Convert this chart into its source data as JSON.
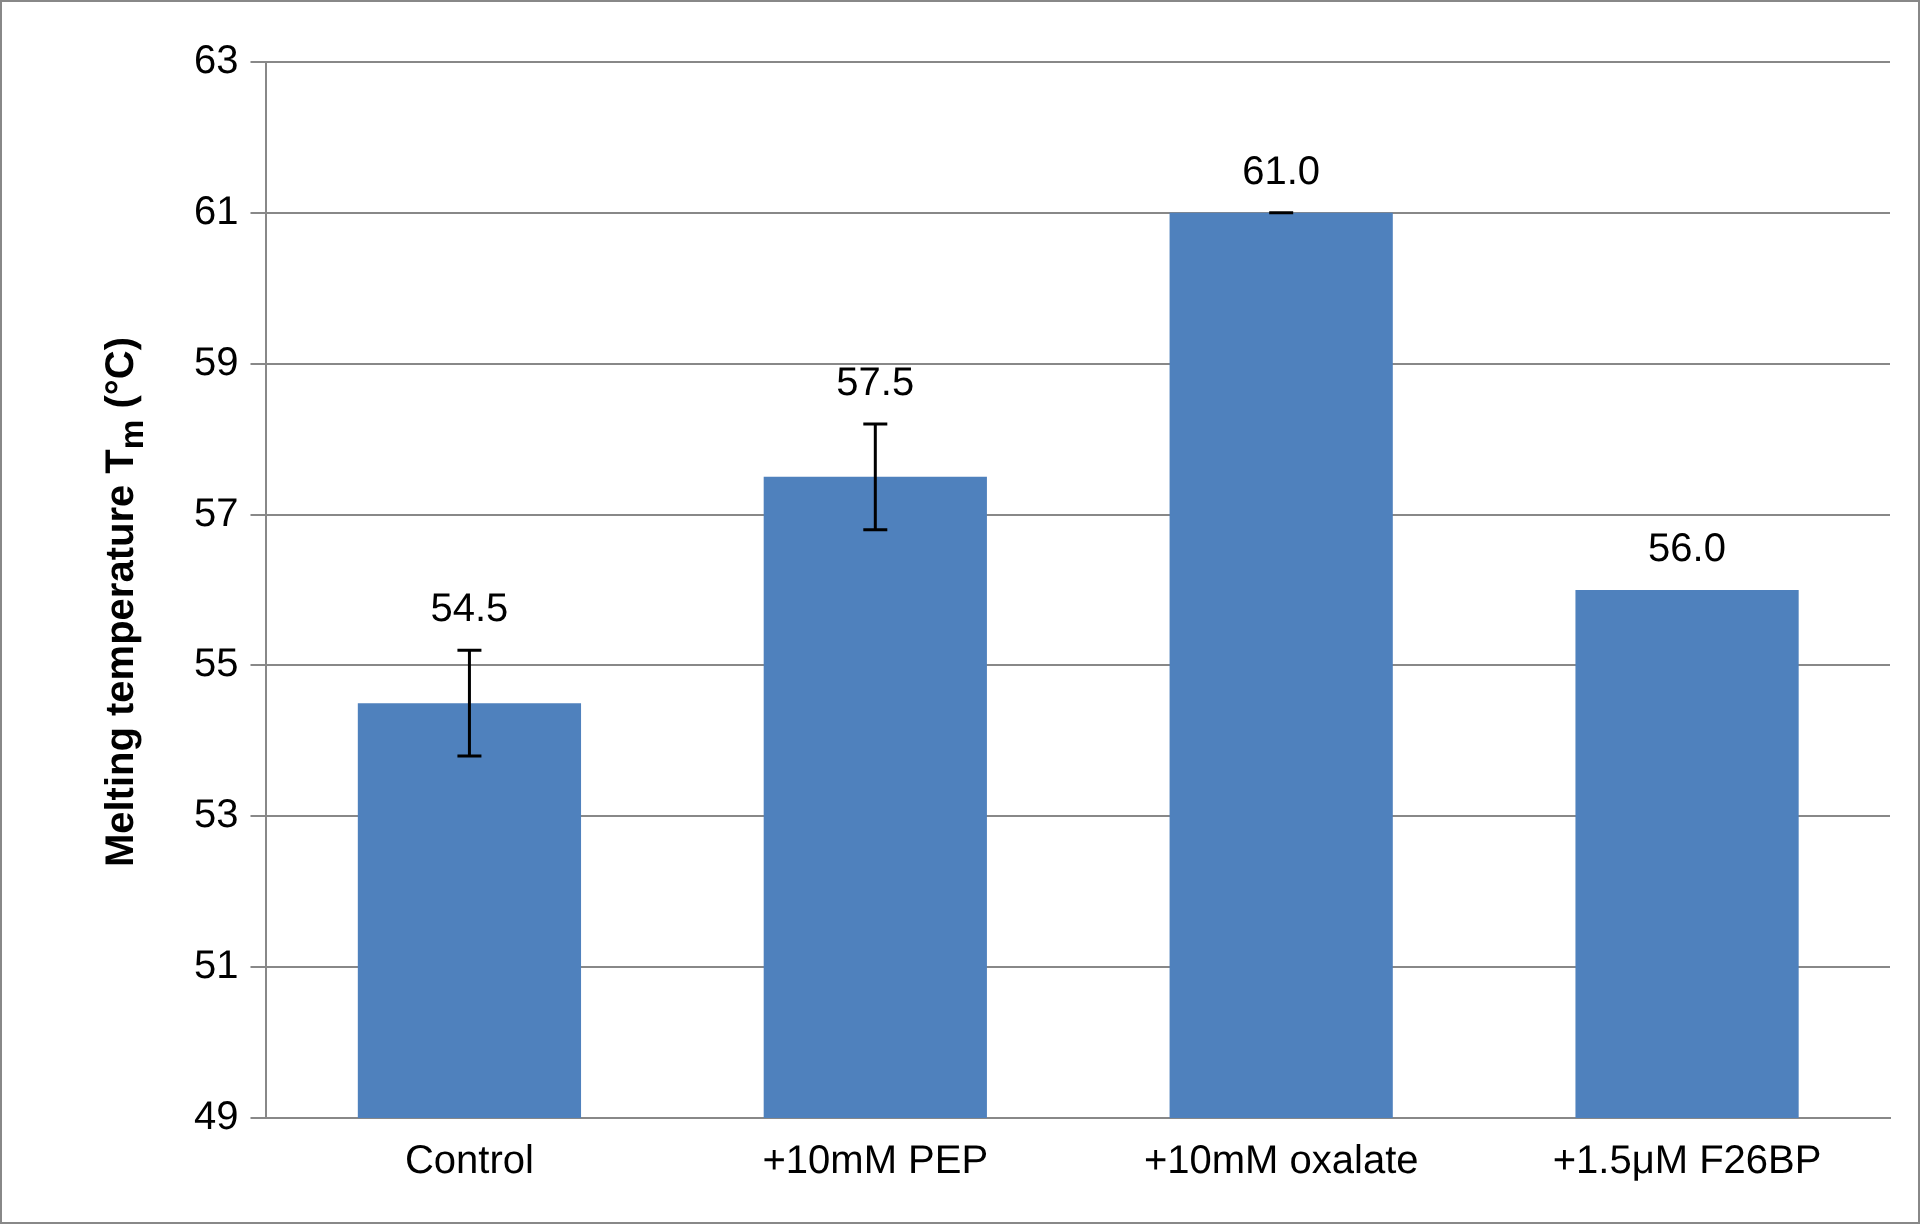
{
  "chart_data": {
    "type": "bar",
    "ylabel": "Melting temperature T$_{m}$ (°C)",
    "categories": [
      "Control",
      "+10mM PEP",
      "+10mM oxalate",
      "+1.5μM F26BP"
    ],
    "values": [
      54.5,
      57.5,
      61.0,
      56.0
    ],
    "errors": [
      0.7,
      0.7,
      0,
      null
    ],
    "value_labels": [
      "54.5",
      "57.5",
      "61.0",
      "56.0"
    ],
    "color": "#4f81bd",
    "ylim": [
      49,
      63
    ],
    "yticks": [
      49,
      51,
      53,
      55,
      57,
      59,
      61,
      63
    ],
    "grid": "y",
    "legend": false
  }
}
